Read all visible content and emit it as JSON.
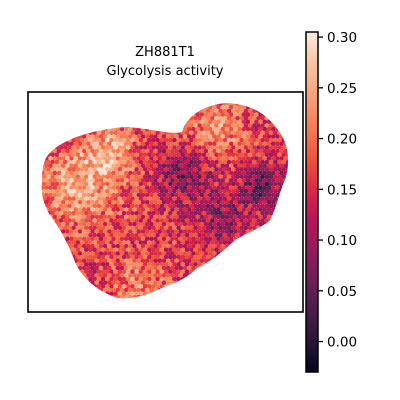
{
  "chart_data": {
    "type": "heatmap",
    "title": "ZH881T1",
    "subtitle": "Glycolysis activity",
    "xlabel": "",
    "ylabel": "",
    "colorbar": {
      "min": -0.03,
      "max": 0.305,
      "colormap": "rocket",
      "ticks": [
        0.3,
        0.25,
        0.2,
        0.15,
        0.1,
        0.05,
        0.0
      ],
      "tick_labels": [
        "0.30",
        "0.25",
        "0.20",
        "0.15",
        "0.10",
        "0.05",
        "0.00"
      ]
    },
    "grid": false,
    "legend": "none",
    "colors": {
      "background": "#ffffff",
      "frame": "#000000",
      "rocket_stops": [
        "#03051a",
        "#2a1637",
        "#4c1d4b",
        "#701f57",
        "#951c5b",
        "#ba1656",
        "#dd2c45",
        "#ef5a41",
        "#f47f58",
        "#f6a47c",
        "#f7c4a4",
        "#faebdd"
      ]
    }
  }
}
